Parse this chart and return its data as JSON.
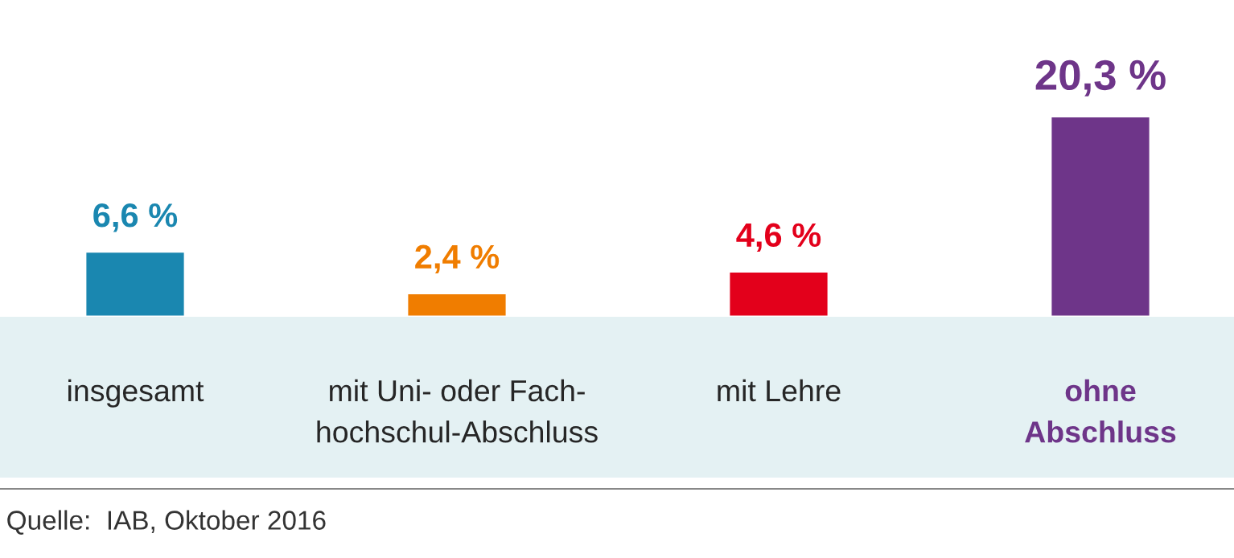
{
  "chart_data": {
    "type": "bar",
    "categories": [
      "insgesamt",
      "mit Uni- oder Fach-\nhochschul-Abschluss",
      "mit Lehre",
      "ohne\nAbschluss"
    ],
    "values": [
      6.6,
      2.4,
      4.6,
      20.3
    ],
    "colors": [
      "#1a87b0",
      "#f07d00",
      "#e3001b",
      "#6e3589"
    ],
    "value_labels": [
      "6,6 %",
      "2,4 %",
      "4,6 %",
      "20,3 %"
    ],
    "annotations": [
      "Quelle:  IAB, Oktober 2016"
    ],
    "grid": false,
    "legend": false
  }
}
